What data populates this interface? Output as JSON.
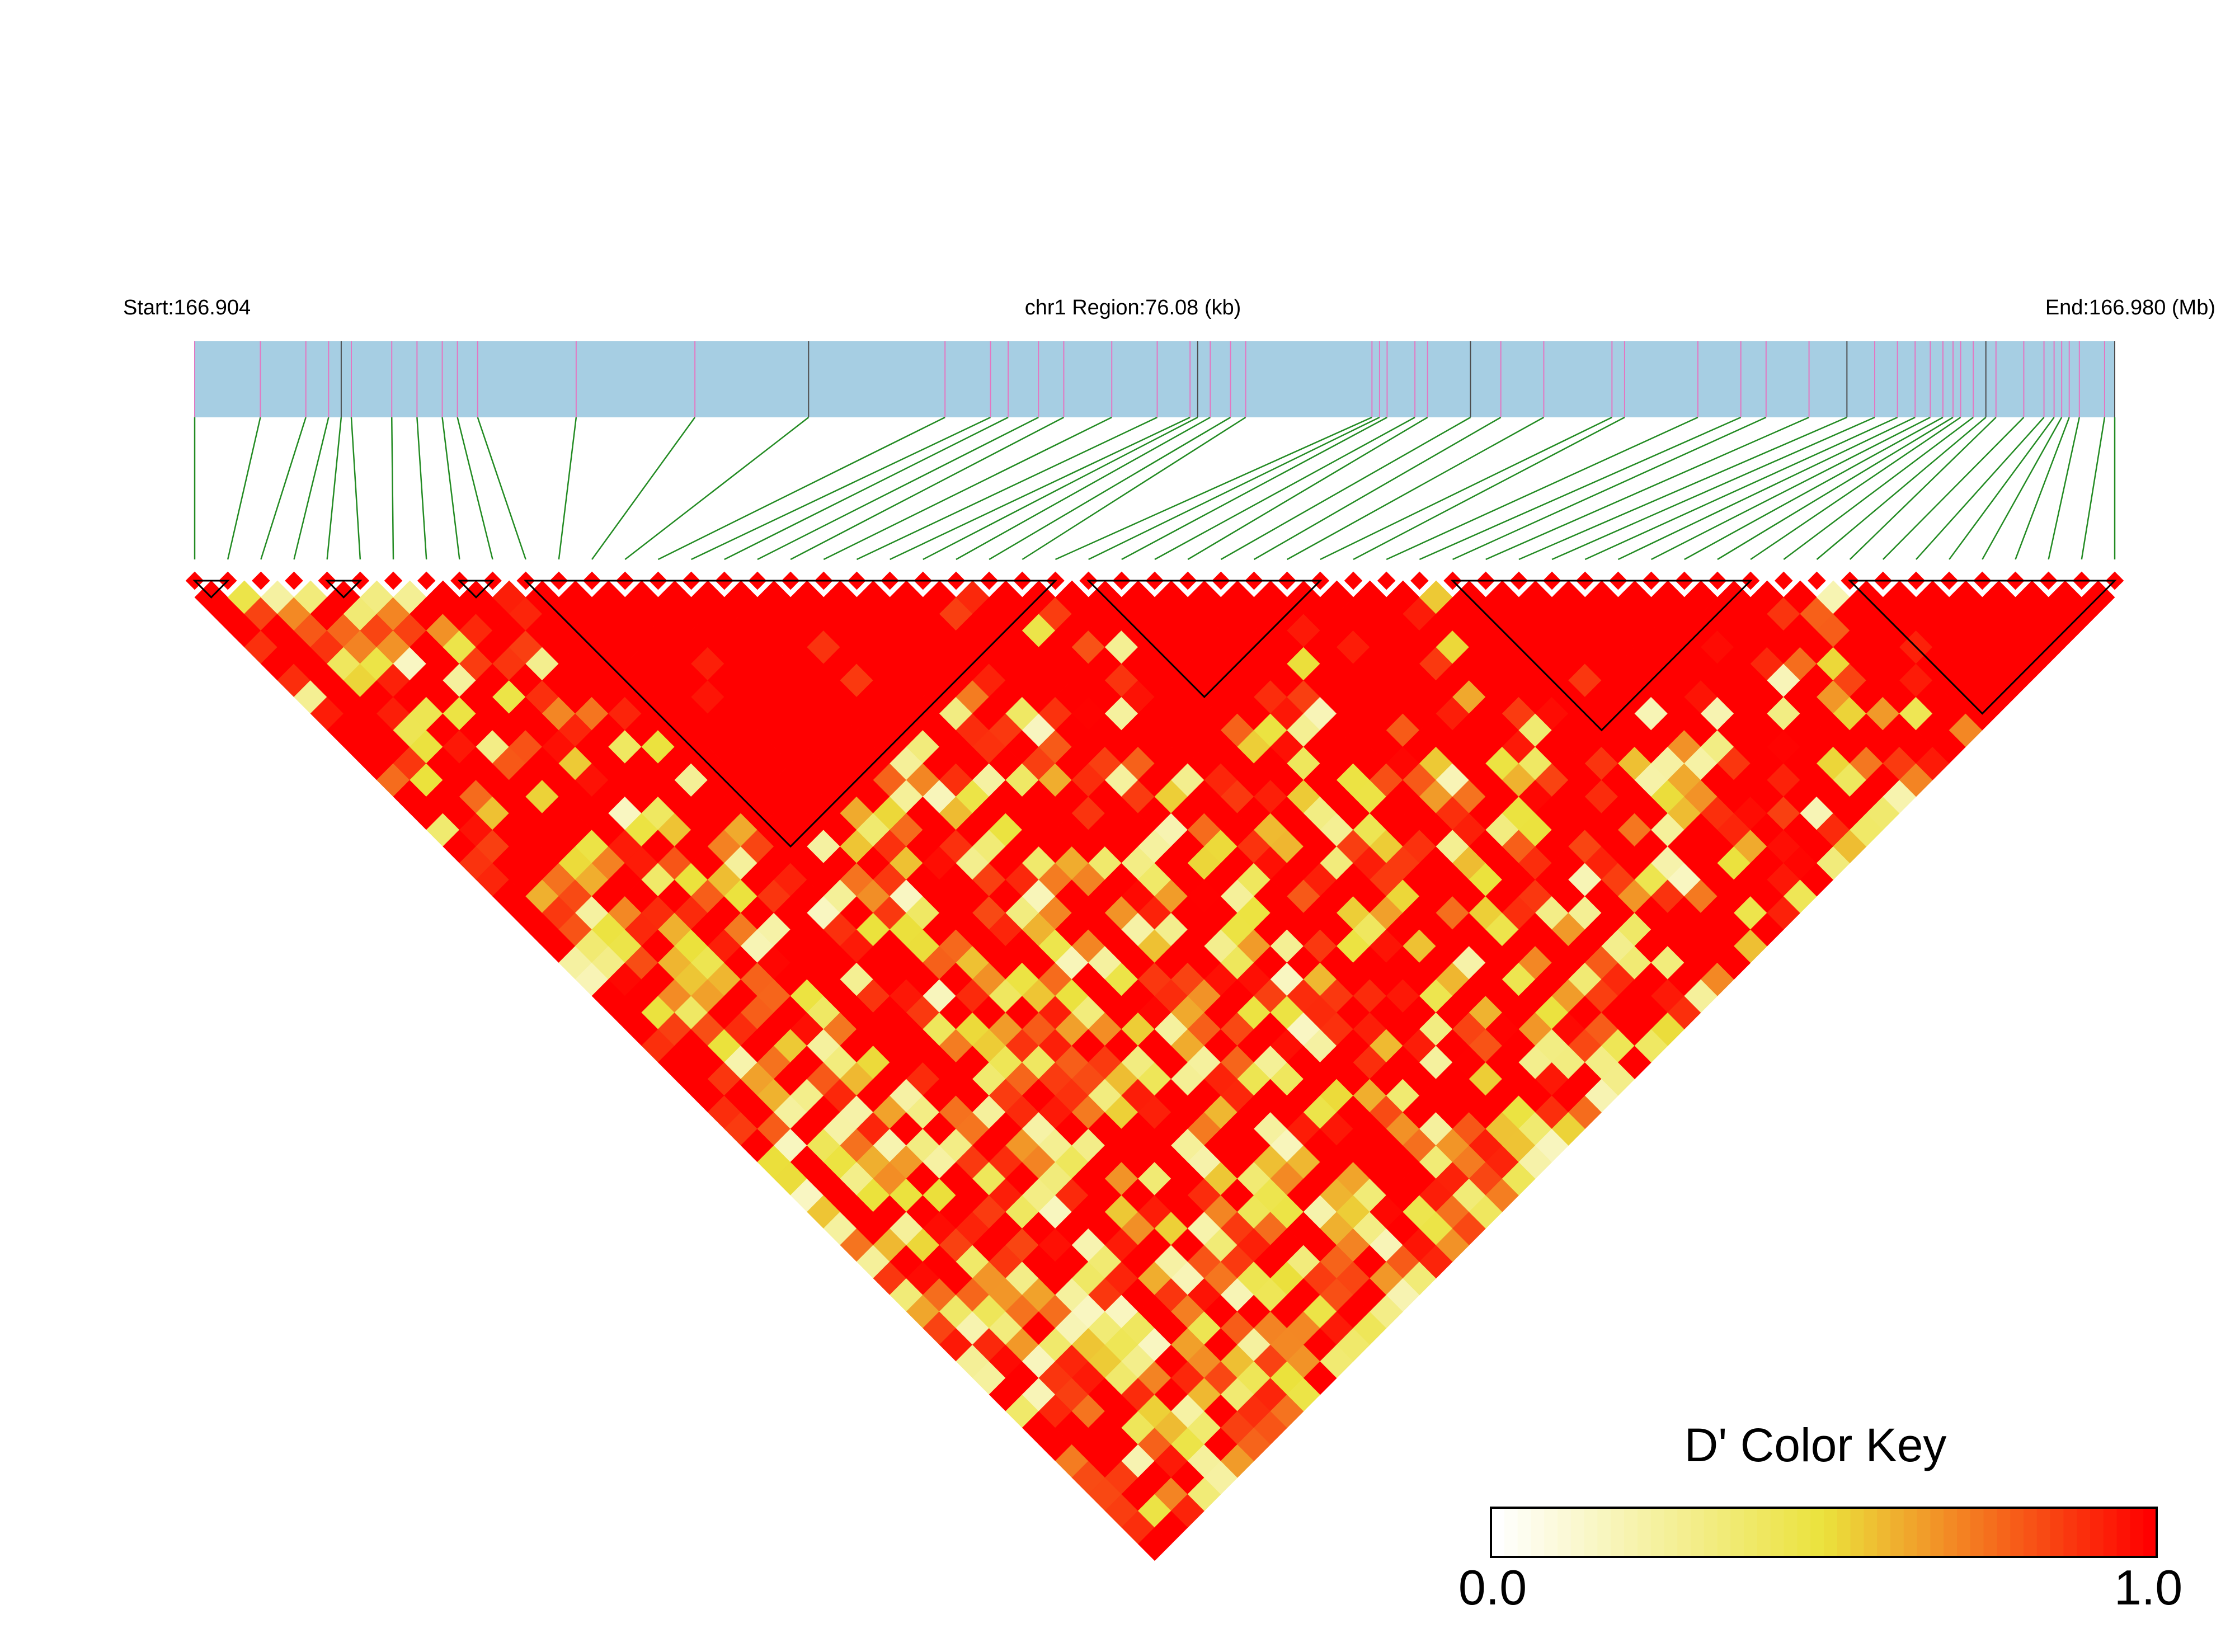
{
  "chart_data": {
    "type": "heatmap",
    "subtype": "ld-triangle",
    "header": {
      "start_label": "Start:166.904",
      "region_label": "chr1 Region:76.08 (kb)",
      "end_label": "End:166.980 (Mb)"
    },
    "chromosome": "chr1",
    "region_start_mb": 166.904,
    "region_end_mb": 166.98,
    "region_size_kb": 76.08,
    "snp_count": 59,
    "snp_positions_mb": [
      166.904,
      166.9066,
      166.9084,
      166.9093,
      166.9098,
      166.9102,
      166.9118,
      166.9128,
      166.9138,
      166.9144,
      166.9152,
      166.9191,
      166.9238,
      166.9283,
      166.9337,
      166.9355,
      166.9362,
      166.9374,
      166.9384,
      166.9403,
      166.9421,
      166.9434,
      166.9437,
      166.9442,
      166.945,
      166.9456,
      166.9506,
      166.9509,
      166.9512,
      166.9523,
      166.9528,
      166.9545,
      166.9557,
      166.9574,
      166.9601,
      166.9606,
      166.9635,
      166.9652,
      166.9662,
      166.9679,
      166.9694,
      166.9705,
      166.9714,
      166.9721,
      166.9727,
      166.9732,
      166.9736,
      166.9739,
      166.9744,
      166.9749,
      166.9753,
      166.9764,
      166.9772,
      166.9776,
      166.9779,
      166.9782,
      166.9786,
      166.9796,
      166.98
    ],
    "ld_blocks": [
      [
        0,
        1
      ],
      [
        4,
        5
      ],
      [
        8,
        9
      ],
      [
        10,
        26
      ],
      [
        27,
        34
      ],
      [
        38,
        47
      ],
      [
        50,
        58
      ]
    ],
    "color_key": {
      "title": "D' Color Key",
      "min_label": "0.0",
      "max_label": "1.0",
      "range": [
        0,
        1
      ],
      "colors": [
        "#ffffff",
        "#ebe23c",
        "#ff0000"
      ]
    },
    "colors": {
      "gene_track": "#a6cee3",
      "snp_tick": "#e377c2",
      "connector": "#238b23",
      "block_outline": "#000000"
    },
    "dprime_generation": {
      "method": "seeded-approximation",
      "seed": 20240511,
      "background": 1.0,
      "block_value": 1.0,
      "low_band_rate": 0.38,
      "low_value_range": [
        0.15,
        0.95
      ]
    }
  }
}
